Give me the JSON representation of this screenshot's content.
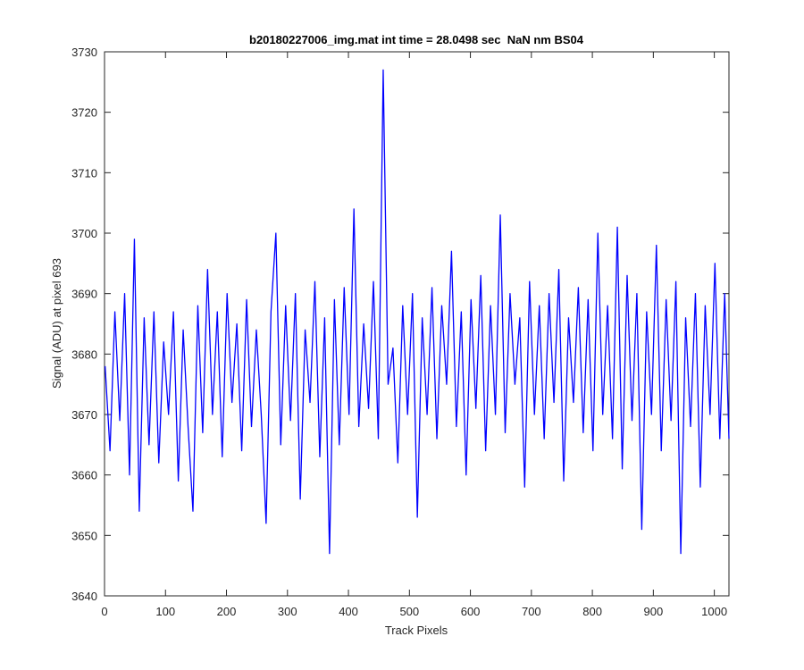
{
  "chart_data": {
    "type": "line",
    "title": "b20180227006_img.mat int time = 28.0498 sec  NaN nm BS04",
    "x_label": "Track Pixels",
    "y_label": "Signal (ADU) at pixel 693",
    "color": "#0000ff",
    "x": [
      1,
      9,
      17,
      25,
      33,
      41,
      49,
      57,
      65,
      73,
      81,
      89,
      97,
      105,
      113,
      121,
      129,
      137,
      145,
      153,
      161,
      169,
      177,
      185,
      193,
      201,
      209,
      217,
      225,
      233,
      241,
      249,
      257,
      265,
      273,
      281,
      289,
      297,
      305,
      313,
      321,
      329,
      337,
      345,
      353,
      361,
      369,
      377,
      385,
      393,
      401,
      409,
      417,
      425,
      433,
      441,
      449,
      457,
      465,
      473,
      481,
      489,
      497,
      505,
      513,
      521,
      529,
      537,
      545,
      553,
      561,
      569,
      577,
      585,
      593,
      601,
      609,
      617,
      625,
      633,
      641,
      649,
      657,
      665,
      673,
      681,
      689,
      697,
      705,
      713,
      721,
      729,
      737,
      745,
      753,
      761,
      769,
      777,
      785,
      793,
      801,
      809,
      817,
      825,
      833,
      841,
      849,
      857,
      865,
      873,
      881,
      889,
      897,
      905,
      913,
      921,
      929,
      937,
      945,
      953,
      961,
      969,
      977,
      985,
      993,
      1001,
      1009,
      1017,
      1024
    ],
    "values": [
      3678,
      3664,
      3687,
      3669,
      3690,
      3660,
      3699,
      3654,
      3686,
      3665,
      3687,
      3662,
      3682,
      3670,
      3687,
      3659,
      3684,
      3668,
      3654,
      3688,
      3667,
      3694,
      3670,
      3687,
      3663,
      3690,
      3672,
      3685,
      3664,
      3689,
      3668,
      3684,
      3670,
      3652,
      3687,
      3700,
      3665,
      3688,
      3669,
      3690,
      3656,
      3684,
      3672,
      3692,
      3663,
      3686,
      3647,
      3689,
      3665,
      3691,
      3670,
      3704,
      3668,
      3685,
      3671,
      3692,
      3666,
      3727,
      3675,
      3681,
      3662,
      3688,
      3670,
      3690,
      3653,
      3686,
      3670,
      3691,
      3666,
      3688,
      3675,
      3697,
      3668,
      3687,
      3660,
      3689,
      3671,
      3693,
      3664,
      3688,
      3670,
      3703,
      3667,
      3690,
      3675,
      3686,
      3658,
      3692,
      3670,
      3688,
      3666,
      3690,
      3672,
      3694,
      3659,
      3686,
      3672,
      3691,
      3667,
      3689,
      3664,
      3700,
      3670,
      3688,
      3666,
      3701,
      3661,
      3693,
      3669,
      3690,
      3651,
      3687,
      3670,
      3698,
      3664,
      3689,
      3669,
      3692,
      3647,
      3686,
      3668,
      3690,
      3658,
      3688,
      3670,
      3695,
      3666,
      3690,
      3666
    ],
    "xlim": [
      0,
      1024
    ],
    "xticks": [
      0,
      100,
      200,
      300,
      400,
      500,
      600,
      700,
      800,
      900,
      1000
    ],
    "ylim": [
      3640,
      3730
    ],
    "yticks": [
      3640,
      3650,
      3660,
      3670,
      3680,
      3690,
      3700,
      3710,
      3720,
      3730
    ]
  }
}
